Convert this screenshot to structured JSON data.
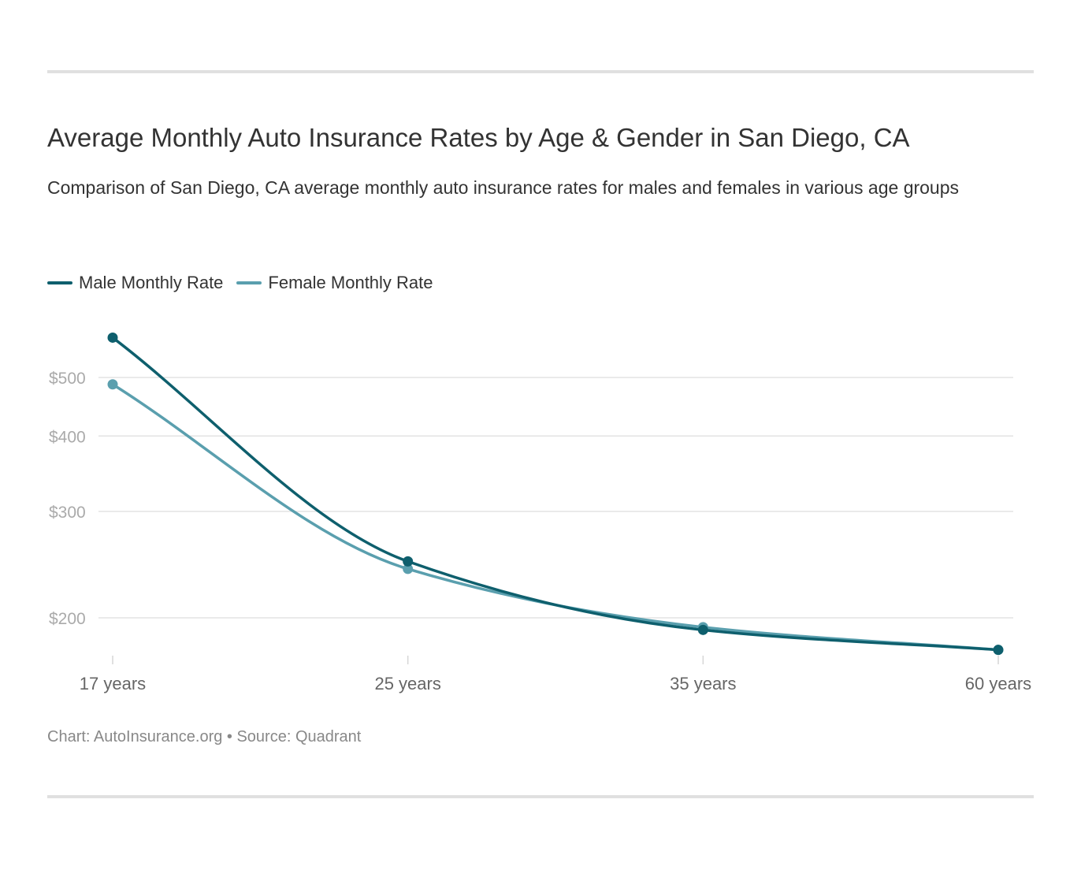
{
  "chart_data": {
    "type": "line",
    "title": "Average Monthly Auto Insurance Rates by Age & Gender in San Diego, CA",
    "subtitle": "Comparison of San Diego, CA average monthly auto insurance rates for males and females in various age groups",
    "categories": [
      "17 years",
      "25 years",
      "35 years",
      "60 years"
    ],
    "series": [
      {
        "name": "Male Monthly Rate",
        "color": "#0e5f6d",
        "values": [
          582,
          248,
          191,
          177
        ]
      },
      {
        "name": "Female Monthly Rate",
        "color": "#5a9fae",
        "values": [
          487,
          241,
          193,
          177
        ]
      }
    ],
    "y_ticks": [
      {
        "value": 200,
        "label": "$200"
      },
      {
        "value": 300,
        "label": "$300"
      },
      {
        "value": 400,
        "label": "$400"
      },
      {
        "value": 500,
        "label": "$500"
      }
    ],
    "y_scale": "log",
    "grid": true,
    "legend_position": "top-left",
    "xlabel": "",
    "ylabel": ""
  },
  "footer": "Chart: AutoInsurance.org • Source: Quadrant"
}
